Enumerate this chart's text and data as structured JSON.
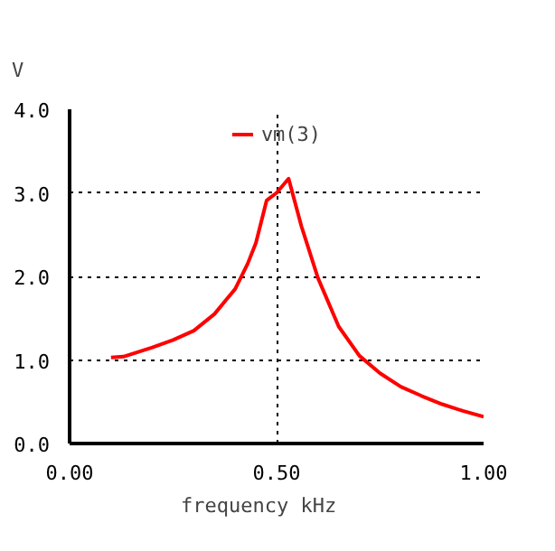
{
  "chart_data": {
    "type": "line",
    "xlabel": "frequency    kHz",
    "ylabel": "V",
    "legend": "top",
    "x": [
      0.1,
      0.13,
      0.2,
      0.25,
      0.3,
      0.35,
      0.4,
      0.43,
      0.45,
      0.476,
      0.5,
      0.529,
      0.56,
      0.6,
      0.65,
      0.7,
      0.75,
      0.8,
      0.85,
      0.9,
      0.95,
      1.0
    ],
    "series": [
      {
        "name": "vm(3)",
        "color": "#ff0000",
        "values": [
          1.03,
          1.04,
          1.15,
          1.24,
          1.35,
          1.55,
          1.85,
          2.15,
          2.4,
          2.91,
          3.0,
          3.17,
          2.6,
          1.98,
          1.4,
          1.05,
          0.84,
          0.68,
          0.57,
          0.47,
          0.39,
          0.32
        ]
      }
    ],
    "xlim": [
      0,
      1.0
    ],
    "ylim": [
      0,
      4.0
    ],
    "xticks": [
      {
        "value": 0,
        "label": "0.00"
      },
      {
        "value": 0.5,
        "label": "0.50"
      },
      {
        "value": 1.0,
        "label": "1.00"
      }
    ],
    "yticks": [
      {
        "value": 0,
        "label": "0.0"
      },
      {
        "value": 1,
        "label": "1.0"
      },
      {
        "value": 2,
        "label": "2.0"
      },
      {
        "value": 3,
        "label": "3.0"
      },
      {
        "value": 4,
        "label": "4.0"
      }
    ],
    "grid": true,
    "line_style": "solid",
    "marker": "none"
  }
}
